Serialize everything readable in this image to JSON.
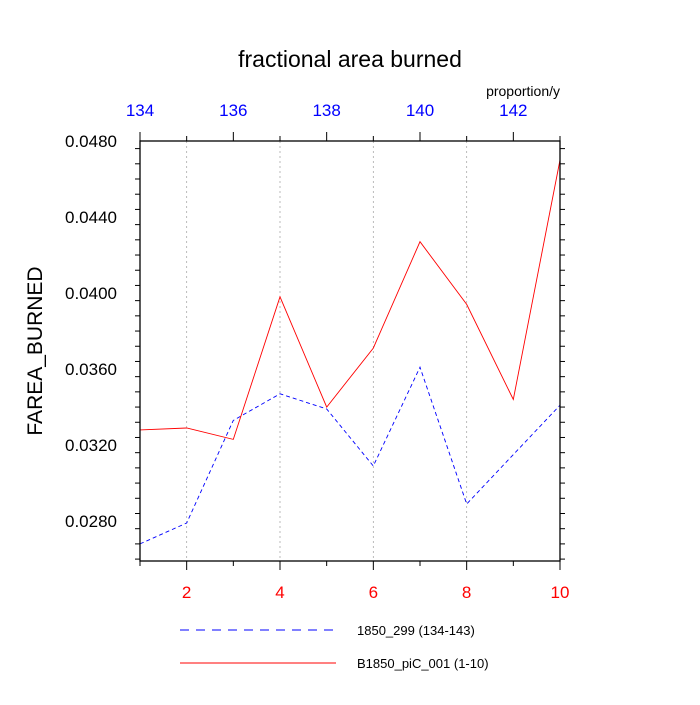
{
  "chart_data": {
    "type": "line",
    "title": "fractional area burned",
    "units": "proportion/y",
    "ylabel": "FAREA_BURNED",
    "xlabel": "",
    "ylim": [
      0.0259,
      0.048
    ],
    "y_ticks": [
      "0.0280",
      "0.0320",
      "0.0360",
      "0.0400",
      "0.0440",
      "0.0480"
    ],
    "grid": "vertical dotted at bottom-axis major ticks",
    "bottom_axis": {
      "range": [
        1,
        10
      ],
      "ticks": [
        2,
        4,
        6,
        8,
        10
      ],
      "color": "#ff0000"
    },
    "top_axis": {
      "range": [
        134,
        143
      ],
      "ticks": [
        134,
        136,
        138,
        140,
        142
      ],
      "color": "#0000ff"
    },
    "series": [
      {
        "name": "1850_299 (134-143)",
        "color": "#0000ff",
        "dash": "dashed",
        "axis": "top",
        "x": [
          134,
          135,
          136,
          137,
          138,
          139,
          140,
          141,
          142,
          143
        ],
        "values": [
          0.0268,
          0.0279,
          0.0333,
          0.0347,
          0.0339,
          0.0309,
          0.0361,
          0.0289,
          0.0315,
          0.0341
        ]
      },
      {
        "name": "B1850_piC_001 (1-10)",
        "color": "#ff0000",
        "dash": "solid",
        "axis": "bottom",
        "x": [
          1,
          2,
          3,
          4,
          5,
          6,
          7,
          8,
          9,
          10
        ],
        "values": [
          0.0328,
          0.0329,
          0.0323,
          0.0398,
          0.034,
          0.0371,
          0.0427,
          0.0394,
          0.0344,
          0.047
        ]
      }
    ],
    "legend": "bottom-center"
  }
}
